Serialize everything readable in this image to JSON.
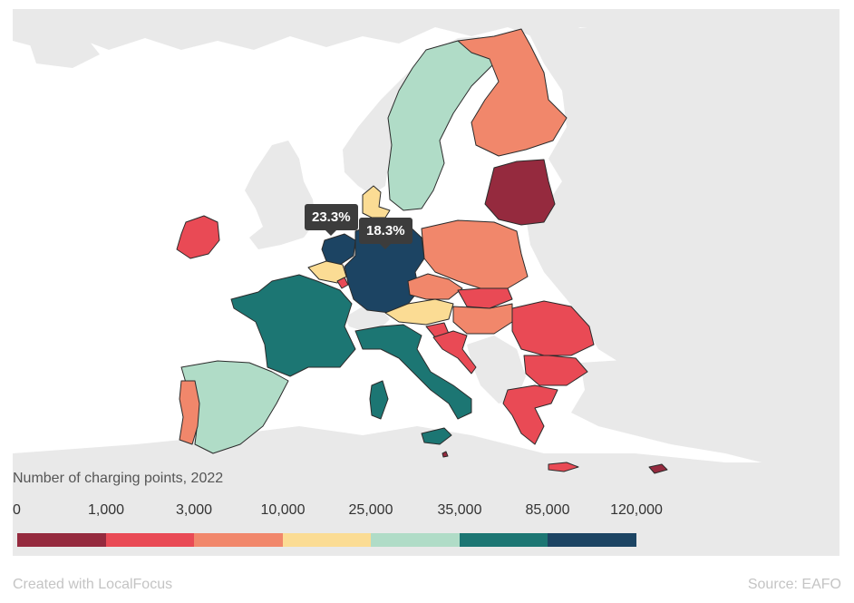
{
  "legend": {
    "title": "Number of charging points, 2022",
    "ticks": [
      "0",
      "1,000",
      "3,000",
      "10,000",
      "25,000",
      "35,000",
      "85,000",
      "120,000"
    ],
    "colors": [
      "#952a3e",
      "#e94a55",
      "#f1876b",
      "#fbdc94",
      "#b0dcc7",
      "#1c7673",
      "#1c4463"
    ]
  },
  "callouts": {
    "netherlands": "23.3%",
    "germany": "18.3%"
  },
  "footer": {
    "credit": "Created with LocalFocus",
    "source": "Source: EAFO"
  },
  "map_colors": {
    "ocean": "#ffffff",
    "land_no_data": "#e9e9e9"
  }
}
